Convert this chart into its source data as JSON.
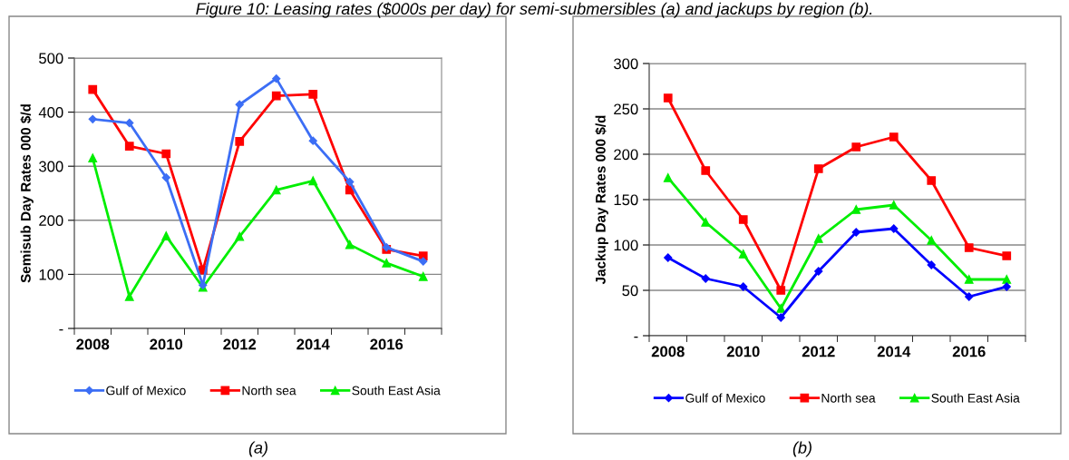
{
  "chart_data": [
    {
      "type": "line",
      "title": "Figure 10: Leasing rates ($000s per day) for semi-submersibles (a) and jackups by region (b).",
      "ylabel": "Semisub Day Rates 000 $/d",
      "categories": [
        "2008",
        null,
        "2010",
        null,
        "2012",
        null,
        "2014",
        null,
        "2016",
        null
      ],
      "series": [
        {
          "name": "Gulf of Mexico",
          "color": "#3c6ef5",
          "marker": "diamond",
          "values": [
            387,
            380,
            279,
            80,
            414,
            462,
            347,
            271,
            150,
            124
          ]
        },
        {
          "name": "North sea",
          "color": "#ff0000",
          "marker": "square",
          "values": [
            442,
            337,
            323,
            108,
            346,
            430,
            433,
            256,
            146,
            134
          ]
        },
        {
          "name": "South East Asia",
          "color": "#00ee00",
          "marker": "triangle",
          "values": [
            315,
            59,
            171,
            76,
            170,
            256,
            273,
            155,
            121,
            96
          ]
        }
      ],
      "ylim": [
        0,
        500
      ],
      "yticks": [
        {
          "value": 0,
          "label": "-"
        },
        100,
        200,
        300,
        400,
        500
      ],
      "grid": "y",
      "legend": "bottom",
      "annotations": [
        "(a)"
      ]
    },
    {
      "type": "line",
      "ylabel": "Jackup Day Rates 000 $/d",
      "categories": [
        "2008",
        null,
        "2010",
        null,
        "2012",
        null,
        "2014",
        null,
        "2016",
        null
      ],
      "series": [
        {
          "name": "Gulf of Mexico",
          "color": "#0000ff",
          "marker": "diamond",
          "values": [
            86,
            63,
            54,
            20,
            71,
            114,
            118,
            78,
            43,
            54
          ]
        },
        {
          "name": "North sea",
          "color": "#ff0000",
          "marker": "square",
          "values": [
            262,
            182,
            128,
            50,
            184,
            208,
            219,
            171,
            97,
            88
          ]
        },
        {
          "name": "South East Asia",
          "color": "#00ee00",
          "marker": "triangle",
          "values": [
            174,
            125,
            90,
            30,
            107,
            139,
            144,
            105,
            62,
            62
          ]
        }
      ],
      "ylim": [
        0,
        300
      ],
      "yticks": [
        {
          "value": 0,
          "label": "-"
        },
        50,
        100,
        150,
        200,
        250,
        300
      ],
      "grid": "y",
      "legend": "bottom",
      "annotations": [
        "(b)"
      ]
    }
  ]
}
